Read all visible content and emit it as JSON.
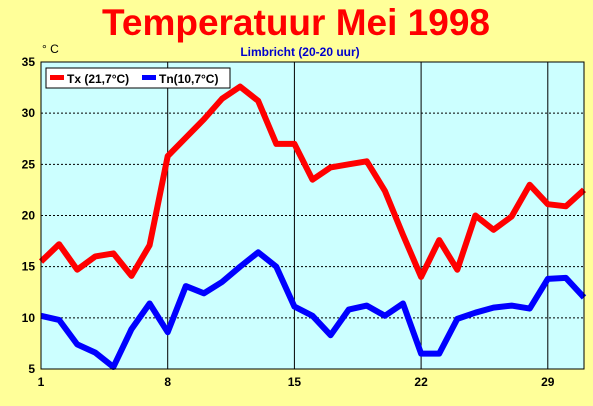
{
  "colors": {
    "background": "#ffff99",
    "plot_background": "#ccffff",
    "title": "#ff0000",
    "subtitle": "#0000cc",
    "tx_series": "#ff0000",
    "tn_series": "#0000ff",
    "grid": "#000000"
  },
  "chart_data": {
    "type": "line",
    "title": "Temperatuur Mei 1998",
    "subtitle": "Limbricht (20-20 uur)",
    "ylabel": "° C",
    "xlabel": "",
    "xlim": [
      1,
      31
    ],
    "ylim": [
      5,
      35
    ],
    "x_ticks": [
      1,
      8,
      15,
      22,
      29
    ],
    "y_ticks": [
      5,
      10,
      15,
      20,
      25,
      30,
      35
    ],
    "grid": true,
    "legend_position": "top-left",
    "x": [
      1,
      2,
      3,
      4,
      5,
      6,
      7,
      8,
      9,
      10,
      11,
      12,
      13,
      14,
      15,
      16,
      17,
      18,
      19,
      20,
      21,
      22,
      23,
      24,
      25,
      26,
      27,
      28,
      29,
      30,
      31
    ],
    "series": [
      {
        "name": "Tx (21,7°C)",
        "color": "#ff0000",
        "values": [
          15.5,
          17.2,
          14.7,
          16.0,
          16.3,
          14.1,
          17.1,
          25.8,
          27.6,
          29.4,
          31.4,
          32.6,
          31.2,
          27.0,
          27.0,
          23.5,
          24.7,
          25.0,
          25.3,
          22.4,
          18.1,
          14.0,
          17.6,
          14.7,
          20.0,
          18.6,
          19.9,
          23.0,
          21.1,
          20.9,
          22.5
        ]
      },
      {
        "name": "Tn(10,7°C)",
        "color": "#0000ff",
        "values": [
          10.2,
          9.8,
          7.4,
          6.6,
          5.2,
          8.9,
          11.4,
          8.6,
          13.1,
          12.4,
          13.5,
          15.0,
          16.4,
          15.0,
          11.1,
          10.2,
          8.3,
          10.8,
          11.2,
          10.2,
          11.4,
          6.5,
          6.5,
          9.9,
          10.5,
          11.0,
          11.2,
          10.9,
          13.8,
          13.9,
          12.0
        ]
      }
    ]
  }
}
